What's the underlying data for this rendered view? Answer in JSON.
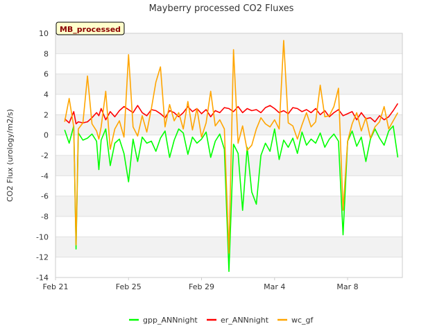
{
  "chart_data": {
    "type": "line",
    "title": "Mayberry processed CO2 Fluxes",
    "xlabel": "",
    "ylabel": "CO2 Flux (urology/m2/s)",
    "annotation": "MB_processed",
    "ylim": [
      -14,
      10
    ],
    "yticks": [
      -14,
      -12,
      -10,
      -8,
      -6,
      -4,
      -2,
      0,
      2,
      4,
      6,
      8,
      10
    ],
    "xlim": [
      "2016-02-21",
      "2016-03-11"
    ],
    "xticks": [
      {
        "label": "Feb 21",
        "date": "2016-02-21"
      },
      {
        "label": "Feb 25",
        "date": "2016-02-25"
      },
      {
        "label": "Feb 29",
        "date": "2016-02-29"
      },
      {
        "label": "Mar 4",
        "date": "2016-03-04"
      },
      {
        "label": "Mar 8",
        "date": "2016-03-08"
      }
    ],
    "grid": true,
    "legend_position": "bottom",
    "x": [
      "2016-02-21 12:00",
      "2016-02-21 18:00",
      "2016-02-22 00:00",
      "2016-02-22 03:00",
      "2016-02-22 06:00",
      "2016-02-22 12:00",
      "2016-02-22 18:00",
      "2016-02-23 00:00",
      "2016-02-23 06:00",
      "2016-02-23 09:00",
      "2016-02-23 12:00",
      "2016-02-23 18:00",
      "2016-02-24 00:00",
      "2016-02-24 06:00",
      "2016-02-24 12:00",
      "2016-02-24 18:00",
      "2016-02-25 00:00",
      "2016-02-25 06:00",
      "2016-02-25 12:00",
      "2016-02-25 18:00",
      "2016-02-26 00:00",
      "2016-02-26 06:00",
      "2016-02-26 12:00",
      "2016-02-26 18:00",
      "2016-02-27 00:00",
      "2016-02-27 06:00",
      "2016-02-27 12:00",
      "2016-02-27 18:00",
      "2016-02-28 00:00",
      "2016-02-28 06:00",
      "2016-02-28 12:00",
      "2016-02-28 18:00",
      "2016-02-29 00:00",
      "2016-02-29 06:00",
      "2016-02-29 12:00",
      "2016-02-29 18:00",
      "2016-03-01 00:00",
      "2016-03-01 06:00",
      "2016-03-01 12:00",
      "2016-03-01 18:00",
      "2016-03-02 00:00",
      "2016-03-02 06:00",
      "2016-03-02 12:00",
      "2016-03-02 18:00",
      "2016-03-03 00:00",
      "2016-03-03 06:00",
      "2016-03-03 12:00",
      "2016-03-03 18:00",
      "2016-03-04 00:00",
      "2016-03-04 06:00",
      "2016-03-04 12:00",
      "2016-03-04 18:00",
      "2016-03-05 00:00",
      "2016-03-05 06:00",
      "2016-03-05 12:00",
      "2016-03-05 18:00",
      "2016-03-06 00:00",
      "2016-03-06 06:00",
      "2016-03-06 12:00",
      "2016-03-06 18:00",
      "2016-03-07 00:00",
      "2016-03-07 06:00",
      "2016-03-07 12:00",
      "2016-03-07 18:00",
      "2016-03-08 00:00",
      "2016-03-08 06:00",
      "2016-03-08 12:00",
      "2016-03-08 18:00",
      "2016-03-09 00:00",
      "2016-03-09 06:00",
      "2016-03-09 12:00",
      "2016-03-09 18:00",
      "2016-03-10 00:00",
      "2016-03-10 06:00",
      "2016-03-10 12:00",
      "2016-03-10 18:00"
    ],
    "series": [
      {
        "name": "gpp_ANNnight",
        "color": "#00ff00",
        "values": [
          0.5,
          -0.8,
          0.9,
          -11.2,
          0.2,
          -0.5,
          -0.3,
          0.1,
          -0.6,
          -3.4,
          -0.5,
          0.6,
          -3.0,
          -0.8,
          -0.4,
          -1.8,
          -4.6,
          -0.4,
          -2.6,
          -0.2,
          -0.8,
          -0.6,
          -1.6,
          -0.3,
          0.4,
          -2.2,
          -0.5,
          0.6,
          0.2,
          -1.9,
          -0.2,
          -0.8,
          -0.4,
          0.3,
          -2.2,
          -0.6,
          0.1,
          -1.4,
          -13.4,
          -0.9,
          -1.8,
          -7.4,
          -1.2,
          -5.6,
          -6.8,
          -2.0,
          -0.8,
          -1.6,
          0.6,
          -2.4,
          -0.5,
          -1.2,
          -0.3,
          -1.8,
          0.3,
          -1.0,
          -0.4,
          -0.8,
          0.2,
          -1.2,
          -0.4,
          0.1,
          -0.6,
          -9.8,
          -0.6,
          0.4,
          -1.1,
          -0.2,
          -2.6,
          -0.4,
          0.6,
          -0.3,
          -1.0,
          0.4,
          0.9,
          -2.2
        ]
      },
      {
        "name": "er_ANNnight",
        "color": "#ff0000",
        "values": [
          1.6,
          1.2,
          2.3,
          1.1,
          1.3,
          1.2,
          1.3,
          1.7,
          2.2,
          1.9,
          2.6,
          1.5,
          2.3,
          1.8,
          2.4,
          2.8,
          2.5,
          2.2,
          2.9,
          2.2,
          1.9,
          2.5,
          2.4,
          2.1,
          1.7,
          2.4,
          2.2,
          1.8,
          2.2,
          2.8,
          2.3,
          2.6,
          2.1,
          2.5,
          1.8,
          2.4,
          2.2,
          2.7,
          2.6,
          2.3,
          2.8,
          2.2,
          2.6,
          2.4,
          2.5,
          2.2,
          2.7,
          2.9,
          2.6,
          2.2,
          2.4,
          2.1,
          2.7,
          2.6,
          2.3,
          2.5,
          2.2,
          2.6,
          2.0,
          2.4,
          1.8,
          2.2,
          2.5,
          1.9,
          2.1,
          2.3,
          1.5,
          2.2,
          1.6,
          1.7,
          1.3,
          1.9,
          1.5,
          1.8,
          2.4,
          3.1
        ]
      },
      {
        "name": "wc_gf",
        "color": "#ffa500",
        "values": [
          1.3,
          3.6,
          0.8,
          -10.8,
          0.6,
          1.2,
          5.8,
          1.1,
          0.4,
          -0.4,
          0.8,
          4.3,
          -1.4,
          0.6,
          1.4,
          -0.2,
          7.9,
          0.8,
          -0.1,
          1.9,
          0.3,
          2.6,
          5.2,
          6.7,
          0.8,
          3.0,
          1.4,
          2.2,
          0.6,
          3.3,
          0.5,
          2.6,
          -0.2,
          1.2,
          4.3,
          0.9,
          1.5,
          0.6,
          -11.6,
          8.4,
          -0.8,
          0.9,
          -1.5,
          -1.0,
          0.6,
          1.7,
          1.1,
          0.8,
          1.5,
          0.6,
          9.3,
          1.2,
          0.9,
          -0.4,
          1.0,
          2.2,
          0.8,
          1.3,
          4.9,
          1.8,
          1.9,
          2.8,
          4.6,
          -7.4,
          -0.6,
          1.1,
          2.2,
          0.4,
          1.7,
          -0.3,
          0.8,
          1.3,
          2.8,
          0.6,
          1.4,
          2.2
        ]
      }
    ]
  },
  "colors": {
    "band": "#f2f2f2",
    "gridline": "#e0e0e0",
    "axis": "#cccccc",
    "tag_fill": "#ffffcc"
  }
}
